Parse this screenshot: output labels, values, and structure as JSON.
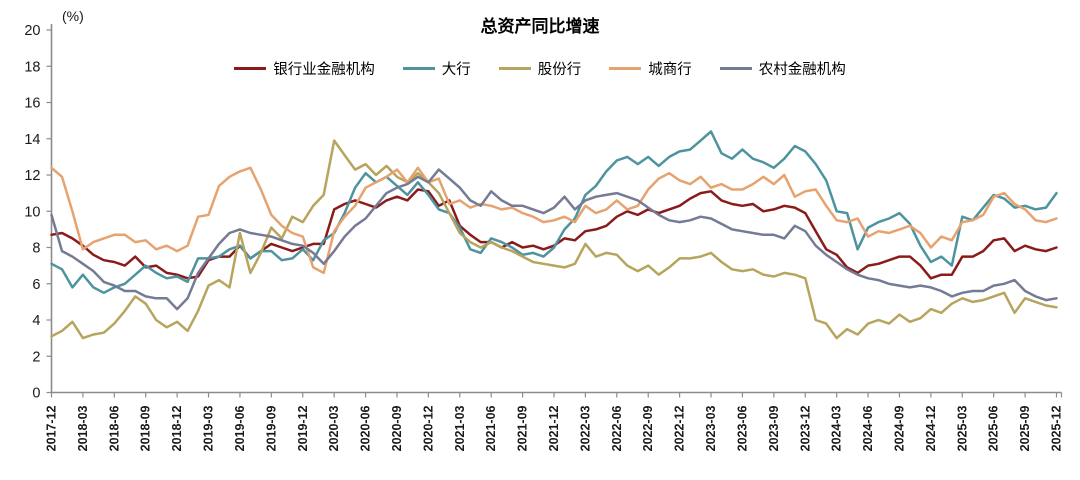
{
  "title": "总资产同比增速",
  "y_axis_unit": "(%)",
  "chart_data": {
    "type": "line",
    "title": "总资产同比增速",
    "ylabel": "(%)",
    "ylim": [
      0,
      20
    ],
    "ytick_step": 2,
    "grid": false,
    "legend_position": "top",
    "x_start": "2017-12",
    "x_end": "2025-12",
    "x_freq": "monthly",
    "x_tick_labels": [
      "2017-12",
      "2018-03",
      "2018-06",
      "2018-09",
      "2018-12",
      "2019-03",
      "2019-06",
      "2019-09",
      "2019-12",
      "2020-03",
      "2020-06",
      "2020-09",
      "2020-12",
      "2021-03",
      "2021-06",
      "2021-09",
      "2021-12",
      "2022-03",
      "2022-06",
      "2022-09",
      "2022-12",
      "2023-03",
      "2023-06",
      "2023-09",
      "2023-12",
      "2024-03",
      "2024-06",
      "2024-09",
      "2024-12",
      "2025-03",
      "2025-06",
      "2025-09",
      "2025-12"
    ],
    "series": [
      {
        "name": "银行业金融机构",
        "color": "#8B1B1B",
        "values": [
          8.7,
          8.8,
          8.5,
          8.1,
          7.6,
          7.3,
          7.2,
          7.0,
          7.5,
          6.9,
          7.0,
          6.6,
          6.5,
          6.3,
          6.4,
          7.3,
          7.5,
          7.5,
          8.1,
          7.4,
          7.8,
          8.2,
          8.0,
          7.8,
          8.0,
          8.2,
          8.2,
          10.1,
          10.4,
          10.6,
          10.4,
          10.2,
          10.6,
          10.8,
          10.6,
          11.2,
          11.1,
          10.3,
          10.6,
          9.2,
          8.7,
          8.3,
          8.3,
          8.0,
          8.3,
          8.0,
          8.1,
          7.9,
          8.1,
          8.5,
          8.4,
          8.9,
          9.0,
          9.2,
          9.7,
          10.0,
          9.8,
          10.1,
          9.9,
          10.1,
          10.3,
          10.7,
          11.0,
          11.1,
          10.6,
          10.4,
          10.3,
          10.4,
          10.0,
          10.1,
          10.3,
          10.2,
          9.9,
          8.9,
          7.9,
          7.6,
          6.9,
          6.6,
          7.0,
          7.1,
          7.3,
          7.5,
          7.5,
          7.0,
          6.3,
          6.5,
          6.5,
          7.5,
          7.5,
          7.8,
          8.4,
          8.5,
          7.8,
          8.1,
          7.9,
          7.8,
          8.0
        ]
      },
      {
        "name": "大行",
        "color": "#4E939E",
        "values": [
          7.1,
          6.8,
          5.8,
          6.5,
          5.8,
          5.5,
          5.8,
          6.0,
          6.5,
          7.0,
          6.6,
          6.3,
          6.4,
          6.1,
          7.4,
          7.4,
          7.5,
          7.9,
          8.1,
          7.4,
          7.8,
          7.8,
          7.3,
          7.4,
          7.9,
          7.3,
          8.4,
          8.8,
          9.9,
          11.3,
          12.1,
          11.6,
          11.9,
          11.4,
          10.9,
          11.6,
          10.9,
          10.1,
          9.9,
          9.1,
          7.9,
          7.7,
          8.5,
          8.3,
          8.0,
          7.6,
          7.7,
          7.5,
          8.0,
          9.0,
          9.6,
          10.9,
          11.4,
          12.2,
          12.8,
          13.0,
          12.6,
          13.0,
          12.5,
          13.0,
          13.3,
          13.4,
          13.9,
          14.4,
          13.2,
          12.9,
          13.4,
          12.9,
          12.7,
          12.4,
          12.9,
          13.6,
          13.3,
          12.6,
          11.7,
          10.0,
          9.9,
          7.9,
          9.1,
          9.4,
          9.6,
          9.9,
          9.3,
          8.1,
          7.2,
          7.5,
          7.0,
          9.7,
          9.5,
          10.2,
          10.9,
          10.7,
          10.2,
          10.3,
          10.1,
          10.2,
          11.0
        ]
      },
      {
        "name": "股份行",
        "color": "#B7A45D",
        "values": [
          3.1,
          3.4,
          3.9,
          3.0,
          3.2,
          3.3,
          3.8,
          4.5,
          5.3,
          4.9,
          4.0,
          3.6,
          3.9,
          3.4,
          4.5,
          5.9,
          6.2,
          5.8,
          8.8,
          6.6,
          7.7,
          9.1,
          8.5,
          9.7,
          9.4,
          10.3,
          10.9,
          13.9,
          13.1,
          12.3,
          12.6,
          12.0,
          12.5,
          11.9,
          11.6,
          12.1,
          11.6,
          11.0,
          9.9,
          8.8,
          8.3,
          8.0,
          8.3,
          8.0,
          7.8,
          7.5,
          7.2,
          7.1,
          7.0,
          6.9,
          7.1,
          8.2,
          7.5,
          7.7,
          7.6,
          7.0,
          6.7,
          7.0,
          6.5,
          6.9,
          7.4,
          7.4,
          7.5,
          7.7,
          7.2,
          6.8,
          6.7,
          6.8,
          6.5,
          6.4,
          6.6,
          6.5,
          6.3,
          4.0,
          3.8,
          3.0,
          3.5,
          3.2,
          3.8,
          4.0,
          3.8,
          4.3,
          3.9,
          4.1,
          4.6,
          4.4,
          4.9,
          5.2,
          5.0,
          5.1,
          5.3,
          5.5,
          4.4,
          5.2,
          5.0,
          4.8,
          4.7
        ]
      },
      {
        "name": "城商行",
        "color": "#E6A36F",
        "values": [
          12.4,
          11.9,
          10.0,
          7.9,
          8.3,
          8.5,
          8.7,
          8.7,
          8.3,
          8.4,
          7.9,
          8.1,
          7.8,
          8.1,
          9.7,
          9.8,
          11.4,
          11.9,
          12.2,
          12.4,
          11.2,
          9.8,
          9.2,
          8.8,
          8.6,
          6.9,
          6.6,
          8.9,
          9.7,
          10.3,
          11.3,
          11.6,
          11.9,
          12.3,
          11.6,
          12.4,
          11.6,
          11.8,
          10.4,
          10.6,
          10.2,
          10.4,
          10.3,
          10.1,
          10.2,
          9.9,
          9.7,
          9.4,
          9.5,
          9.7,
          9.4,
          10.3,
          9.9,
          10.1,
          10.6,
          10.1,
          10.3,
          11.2,
          11.8,
          12.1,
          11.7,
          11.5,
          11.9,
          11.3,
          11.5,
          11.2,
          11.2,
          11.5,
          11.9,
          11.5,
          12.0,
          10.8,
          11.1,
          11.2,
          10.3,
          9.5,
          9.4,
          9.6,
          8.6,
          8.9,
          8.8,
          9.0,
          9.2,
          8.8,
          8.0,
          8.6,
          8.4,
          9.4,
          9.5,
          9.8,
          10.8,
          11.0,
          10.4,
          10.1,
          9.5,
          9.4,
          9.6
        ]
      },
      {
        "name": "农村金融机构",
        "color": "#757B95",
        "values": [
          9.8,
          7.8,
          7.5,
          7.1,
          6.7,
          6.1,
          5.9,
          5.6,
          5.6,
          5.3,
          5.2,
          5.2,
          4.6,
          5.2,
          6.6,
          7.4,
          8.2,
          8.8,
          9.0,
          8.8,
          8.7,
          8.6,
          8.4,
          8.2,
          8.1,
          7.7,
          7.1,
          7.8,
          8.6,
          9.2,
          9.6,
          10.3,
          11.0,
          11.3,
          11.5,
          11.9,
          11.6,
          12.3,
          11.8,
          11.3,
          10.6,
          10.3,
          11.1,
          10.6,
          10.3,
          10.3,
          10.1,
          9.9,
          10.2,
          10.8,
          10.1,
          10.6,
          10.8,
          10.9,
          11.0,
          10.8,
          10.6,
          10.2,
          9.8,
          9.5,
          9.4,
          9.5,
          9.7,
          9.6,
          9.3,
          9.0,
          8.9,
          8.8,
          8.7,
          8.7,
          8.5,
          9.2,
          8.9,
          8.1,
          7.6,
          7.2,
          6.8,
          6.5,
          6.3,
          6.2,
          6.0,
          5.9,
          5.8,
          5.9,
          5.8,
          5.6,
          5.3,
          5.5,
          5.6,
          5.6,
          5.9,
          6.0,
          6.2,
          5.6,
          5.3,
          5.1,
          5.2
        ]
      }
    ]
  }
}
